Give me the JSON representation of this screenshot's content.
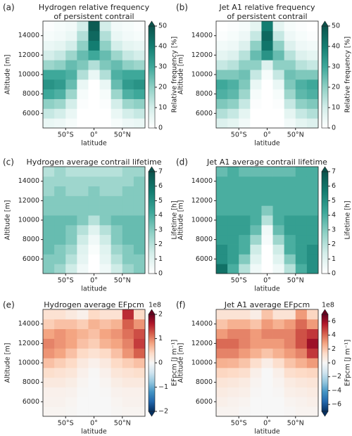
{
  "chart_data": [
    {
      "type": "heatmap",
      "label": "(a)",
      "title": [
        "Hydrogen relative frequency",
        "of persistent contrail"
      ],
      "xlabel": "latitude",
      "ylabel": "Altitude [m]",
      "x": [
        -80,
        -60,
        -40,
        -20,
        0,
        20,
        40,
        60,
        80
      ],
      "y": [
        5000,
        6000,
        7000,
        8000,
        9000,
        10000,
        11000,
        12000,
        13000,
        14000,
        15000
      ],
      "z": [
        [
          5,
          4,
          2,
          0,
          0,
          0,
          2,
          4,
          5
        ],
        [
          12,
          10,
          5,
          0,
          0,
          0,
          5,
          10,
          12
        ],
        [
          20,
          18,
          10,
          1,
          0,
          1,
          10,
          18,
          20
        ],
        [
          30,
          28,
          18,
          2,
          0,
          2,
          18,
          28,
          30
        ],
        [
          35,
          33,
          25,
          5,
          0,
          5,
          25,
          33,
          35
        ],
        [
          30,
          30,
          28,
          15,
          5,
          15,
          28,
          30,
          30
        ],
        [
          18,
          20,
          25,
          22,
          15,
          22,
          25,
          20,
          18
        ],
        [
          10,
          12,
          18,
          25,
          30,
          25,
          18,
          12,
          10
        ],
        [
          5,
          6,
          10,
          20,
          40,
          20,
          10,
          6,
          5
        ],
        [
          2,
          3,
          5,
          15,
          45,
          15,
          5,
          3,
          2
        ],
        [
          1,
          2,
          3,
          10,
          48,
          10,
          3,
          2,
          1
        ]
      ],
      "xlim": [
        -90,
        90
      ],
      "ylim": [
        4500,
        15500
      ],
      "xticks": [
        {
          "value": -50,
          "label": "50°S"
        },
        {
          "value": 0,
          "label": "0°"
        },
        {
          "value": 50,
          "label": "50°N"
        }
      ],
      "yticks": [
        6000,
        8000,
        10000,
        12000,
        14000
      ],
      "colorbar": {
        "label": "Relative frequency [%]",
        "lim": [
          0,
          50
        ],
        "ticks": [
          0,
          10,
          20,
          30,
          40,
          50
        ],
        "extend": "max",
        "colors": [
          "#ffffff",
          "#d4eeea",
          "#8fd0c5",
          "#3ea89a",
          "#137d71",
          "#0b534c"
        ]
      }
    },
    {
      "type": "heatmap",
      "label": "(b)",
      "title": [
        "Jet A1 relative frequency",
        "of persistent contrail"
      ],
      "xlabel": "latitude",
      "ylabel": "Altitude [m]",
      "x": [
        -80,
        -60,
        -40,
        -20,
        0,
        20,
        40,
        60,
        80
      ],
      "y": [
        5000,
        6000,
        7000,
        8000,
        9000,
        10000,
        11000,
        12000,
        13000,
        14000,
        15000
      ],
      "z": [
        [
          8,
          6,
          3,
          0,
          0,
          0,
          3,
          6,
          8
        ],
        [
          15,
          12,
          6,
          0,
          0,
          0,
          6,
          12,
          15
        ],
        [
          22,
          20,
          12,
          1,
          0,
          1,
          12,
          20,
          22
        ],
        [
          28,
          26,
          18,
          2,
          0,
          2,
          18,
          26,
          28
        ],
        [
          30,
          28,
          22,
          5,
          0,
          5,
          22,
          28,
          30
        ],
        [
          22,
          22,
          24,
          12,
          2,
          12,
          24,
          22,
          22
        ],
        [
          12,
          14,
          20,
          20,
          8,
          20,
          20,
          14,
          12
        ],
        [
          6,
          8,
          14,
          25,
          35,
          25,
          14,
          8,
          6
        ],
        [
          3,
          4,
          8,
          20,
          42,
          20,
          8,
          4,
          3
        ],
        [
          1,
          2,
          4,
          12,
          45,
          12,
          4,
          2,
          1
        ],
        [
          0,
          1,
          2,
          6,
          40,
          6,
          2,
          1,
          0
        ]
      ],
      "xlim": [
        -90,
        90
      ],
      "ylim": [
        4500,
        15500
      ],
      "xticks": [
        {
          "value": -50,
          "label": "50°S"
        },
        {
          "value": 0,
          "label": "0°"
        },
        {
          "value": 50,
          "label": "50°N"
        }
      ],
      "yticks": [
        6000,
        8000,
        10000,
        12000,
        14000
      ],
      "colorbar": {
        "label": "Relative frequency [%]",
        "lim": [
          0,
          50
        ],
        "ticks": [
          0,
          10,
          20,
          30,
          40,
          50
        ],
        "extend": "max",
        "colors": [
          "#ffffff",
          "#d4eeea",
          "#8fd0c5",
          "#3ea89a",
          "#137d71",
          "#0b534c"
        ]
      }
    },
    {
      "type": "heatmap",
      "label": "(c)",
      "title": [
        "Hydrogen average contrail lifetime"
      ],
      "xlabel": "latitude",
      "ylabel": "Altitude [m]",
      "x": [
        -80,
        -60,
        -40,
        -20,
        0,
        20,
        40,
        60,
        80
      ],
      "y": [
        5000,
        6000,
        7000,
        8000,
        9000,
        10000,
        11000,
        12000,
        13000,
        14000,
        15000
      ],
      "z": [
        [
          3,
          2.5,
          1.5,
          0.5,
          0,
          0.5,
          1.5,
          2.5,
          3
        ],
        [
          3,
          3,
          2,
          0.8,
          0,
          0.8,
          2,
          3,
          3
        ],
        [
          3.5,
          3,
          2.5,
          1,
          0.2,
          1,
          2.5,
          3,
          3.5
        ],
        [
          3.5,
          3.5,
          3,
          1.5,
          0.5,
          1.5,
          3,
          3.5,
          3.5
        ],
        [
          3.5,
          3.5,
          3,
          2,
          1,
          2,
          3,
          3.5,
          3.5
        ],
        [
          3.5,
          3.5,
          3.5,
          3,
          2,
          3,
          3.5,
          3.5,
          3.5
        ],
        [
          3,
          3,
          3,
          3,
          3,
          3,
          3,
          3,
          3
        ],
        [
          3,
          3,
          3,
          3,
          3,
          3,
          3,
          3,
          3
        ],
        [
          2.5,
          3,
          2.5,
          2.5,
          3,
          2.5,
          2.5,
          3,
          3
        ],
        [
          2.5,
          2.5,
          2.5,
          2.5,
          2.5,
          2.5,
          2.5,
          2.5,
          3
        ],
        [
          2,
          2.5,
          2,
          2,
          2,
          2,
          2,
          2.5,
          2.5
        ]
      ],
      "xlim": [
        -90,
        90
      ],
      "ylim": [
        4500,
        15500
      ],
      "xticks": [
        {
          "value": -50,
          "label": "50°S"
        },
        {
          "value": 0,
          "label": "0°"
        },
        {
          "value": 50,
          "label": "50°N"
        }
      ],
      "yticks": [
        6000,
        8000,
        10000,
        12000,
        14000
      ],
      "colorbar": {
        "label": "Lifetime [h]",
        "lim": [
          0,
          7
        ],
        "ticks": [
          0,
          1,
          2,
          3,
          4,
          5,
          6,
          7
        ],
        "extend": "max",
        "colors": [
          "#ffffff",
          "#d4eeea",
          "#8fd0c5",
          "#3ea89a",
          "#137d71",
          "#0b534c"
        ]
      }
    },
    {
      "type": "heatmap",
      "label": "(d)",
      "title": [
        "Jet A1 average contrail lifetime"
      ],
      "xlabel": "latitude",
      "ylabel": "Altitude [m]",
      "x": [
        -80,
        -60,
        -40,
        -20,
        0,
        20,
        40,
        60,
        80
      ],
      "y": [
        5000,
        6000,
        7000,
        8000,
        9000,
        10000,
        11000,
        12000,
        13000,
        14000,
        15000
      ],
      "z": [
        [
          6,
          4,
          2,
          0.5,
          0,
          0.5,
          2,
          4,
          5
        ],
        [
          5,
          4.5,
          3,
          1,
          0,
          1,
          3,
          4.5,
          5
        ],
        [
          5,
          4.5,
          4,
          1.5,
          0,
          1.5,
          4,
          4.5,
          5
        ],
        [
          4.5,
          4.5,
          4,
          2.5,
          0.3,
          2.5,
          4,
          4.5,
          4.5
        ],
        [
          4.5,
          4.5,
          4.5,
          3.5,
          0.5,
          3.5,
          4.5,
          4.5,
          4.5
        ],
        [
          4.5,
          4.5,
          4.5,
          4,
          2,
          4,
          4.5,
          4.5,
          4.5
        ],
        [
          4,
          4,
          4,
          4,
          3,
          4,
          4,
          4,
          4
        ],
        [
          4,
          4,
          4,
          4,
          4,
          4,
          4,
          4,
          4
        ],
        [
          4,
          4,
          4,
          4,
          4,
          4,
          4,
          4,
          4
        ],
        [
          4,
          4,
          4,
          4,
          4,
          4,
          4,
          4,
          4
        ],
        [
          3.5,
          4,
          3.5,
          3.5,
          3.5,
          3.5,
          3.5,
          4,
          4
        ]
      ],
      "xlim": [
        -90,
        90
      ],
      "ylim": [
        4500,
        15500
      ],
      "xticks": [
        {
          "value": -50,
          "label": "50°S"
        },
        {
          "value": 0,
          "label": "0°"
        },
        {
          "value": 50,
          "label": "50°N"
        }
      ],
      "yticks": [
        6000,
        8000,
        10000,
        12000,
        14000
      ],
      "colorbar": {
        "label": "Lifetime [h]",
        "lim": [
          0,
          7
        ],
        "ticks": [
          0,
          1,
          2,
          3,
          4,
          5,
          6,
          7
        ],
        "extend": "max",
        "colors": [
          "#ffffff",
          "#d4eeea",
          "#8fd0c5",
          "#3ea89a",
          "#137d71",
          "#0b534c"
        ]
      }
    },
    {
      "type": "heatmap",
      "label": "(e)",
      "title": [
        "Hydrogen average EFpcm"
      ],
      "xlabel": "latitude",
      "ylabel": "Altitude [m]",
      "x": [
        -80,
        -60,
        -40,
        -20,
        0,
        20,
        40,
        60,
        80
      ],
      "y": [
        5000,
        6000,
        7000,
        8000,
        9000,
        10000,
        11000,
        12000,
        13000,
        14000,
        15000
      ],
      "z": [
        [
          0.05,
          0.05,
          0.03,
          0,
          0,
          0,
          0.03,
          0.05,
          0.05
        ],
        [
          0.08,
          0.08,
          0.05,
          0,
          0,
          0,
          0.05,
          0.08,
          0.08
        ],
        [
          0.1,
          0.1,
          0.08,
          0.02,
          0,
          0.02,
          0.08,
          0.1,
          0.1
        ],
        [
          0.2,
          0.2,
          0.15,
          0.05,
          0,
          0.05,
          0.15,
          0.2,
          0.2
        ],
        [
          0.35,
          0.3,
          0.25,
          0.1,
          0.02,
          0.1,
          0.25,
          0.3,
          0.35
        ],
        [
          0.6,
          0.5,
          0.4,
          0.2,
          0.1,
          0.2,
          0.4,
          0.5,
          0.6
        ],
        [
          0.9,
          0.8,
          0.6,
          0.4,
          0.3,
          0.4,
          0.6,
          0.9,
          1.2
        ],
        [
          1,
          0.9,
          0.8,
          0.6,
          0.5,
          0.7,
          0.8,
          1,
          1.4
        ],
        [
          0.8,
          0.9,
          0.8,
          0.7,
          0.6,
          0.8,
          0.9,
          1.1,
          1.3
        ],
        [
          0.5,
          0.6,
          0.6,
          0.5,
          0.7,
          0.6,
          0.7,
          1.2,
          0.9
        ],
        [
          0.3,
          0.3,
          0.2,
          0.1,
          0.4,
          0.3,
          0.3,
          1.5,
          0.4
        ]
      ],
      "xlim": [
        -90,
        90
      ],
      "ylim": [
        4500,
        15500
      ],
      "xticks": [
        {
          "value": -50,
          "label": "50°S"
        },
        {
          "value": 0,
          "label": "0°"
        },
        {
          "value": 50,
          "label": "50°N"
        }
      ],
      "yticks": [
        6000,
        8000,
        10000,
        12000,
        14000
      ],
      "colorbar": {
        "label": "EFpcm [J m⁻¹]",
        "offset": "1e8",
        "lim": [
          -2,
          2
        ],
        "ticks": [
          {
            "value": -2,
            "label": "−2"
          },
          {
            "value": -1,
            "label": "−1"
          },
          0,
          1,
          2
        ],
        "extend": "both",
        "colors": [
          "#053061",
          "#2166ac",
          "#4393c3",
          "#92c5de",
          "#d1e5f0",
          "#f7f7f7",
          "#fddbc7",
          "#f4a582",
          "#d6604d",
          "#b2182b",
          "#67001f"
        ]
      }
    },
    {
      "type": "heatmap",
      "label": "(f)",
      "title": [
        "Jet A1 average EFpcm"
      ],
      "xlabel": "latitude",
      "ylabel": "Altitude [m]",
      "x": [
        -80,
        -60,
        -40,
        -20,
        0,
        20,
        40,
        60,
        80
      ],
      "y": [
        5000,
        6000,
        7000,
        8000,
        9000,
        10000,
        11000,
        12000,
        13000,
        14000,
        15000
      ],
      "z": [
        [
          0.2,
          0.2,
          0.1,
          0,
          0,
          0,
          0.1,
          0.2,
          0.2
        ],
        [
          0.4,
          0.3,
          0.2,
          0,
          0,
          0,
          0.2,
          0.3,
          0.4
        ],
        [
          0.6,
          0.5,
          0.4,
          0.1,
          0,
          0.1,
          0.4,
          0.5,
          0.6
        ],
        [
          0.9,
          0.8,
          0.6,
          0.2,
          0,
          0.2,
          0.6,
          0.8,
          0.9
        ],
        [
          1.5,
          1.4,
          1.2,
          0.4,
          0,
          0.4,
          1.2,
          1.4,
          1.5
        ],
        [
          2.5,
          2.4,
          2,
          1.2,
          0.5,
          1.2,
          2,
          2.5,
          3
        ],
        [
          3.5,
          3.5,
          3,
          2.5,
          2,
          2.5,
          3,
          3.5,
          5
        ],
        [
          4,
          4,
          3.5,
          3,
          3,
          3,
          3.5,
          4.5,
          6
        ],
        [
          3,
          3.5,
          3.5,
          3,
          3.5,
          3.5,
          3.5,
          4.5,
          5
        ],
        [
          2,
          2.5,
          2.5,
          2,
          3,
          2.5,
          3,
          4,
          3
        ],
        [
          1,
          1,
          1,
          0.5,
          2,
          1,
          1,
          3,
          1.5
        ]
      ],
      "xlim": [
        -90,
        90
      ],
      "ylim": [
        4500,
        15500
      ],
      "xticks": [
        {
          "value": -50,
          "label": "50°S"
        },
        {
          "value": 0,
          "label": "0°"
        },
        {
          "value": 50,
          "label": "50°N"
        }
      ],
      "yticks": [
        6000,
        8000,
        10000,
        12000,
        14000
      ],
      "colorbar": {
        "label": "EFpcm [J m⁻¹]",
        "offset": "1e8",
        "lim": [
          -7,
          7
        ],
        "ticks": [
          {
            "value": -6,
            "label": "−6"
          },
          {
            "value": -4,
            "label": "−4"
          },
          {
            "value": -2,
            "label": "−2"
          },
          0,
          2,
          4,
          6
        ],
        "extend": "both",
        "colors": [
          "#053061",
          "#2166ac",
          "#4393c3",
          "#92c5de",
          "#d1e5f0",
          "#f7f7f7",
          "#fddbc7",
          "#f4a582",
          "#d6604d",
          "#b2182b",
          "#67001f"
        ]
      }
    }
  ]
}
